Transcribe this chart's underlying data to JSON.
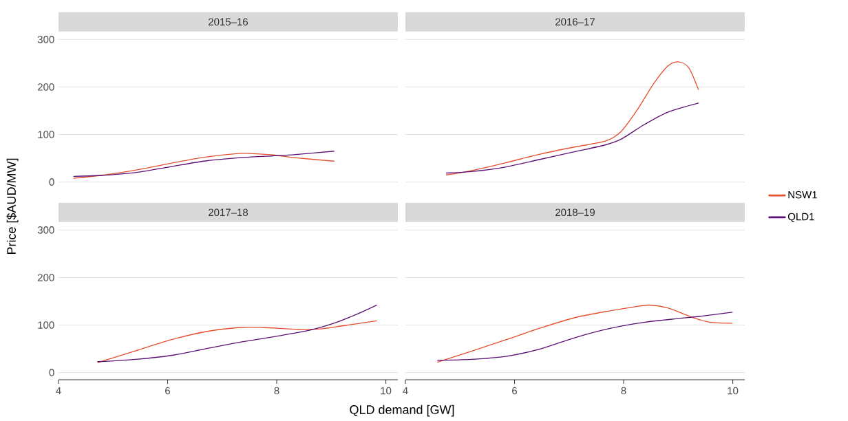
{
  "chart_data": [
    {
      "type": "line",
      "title": "2015–16",
      "ylabel": "Price [$AUD/MW]",
      "xlim": [
        4,
        10.22
      ],
      "ylim": [
        0,
        300
      ],
      "xticks": [
        4,
        6,
        8,
        10
      ],
      "yticks": [
        0,
        100,
        200,
        300
      ],
      "grid": "y",
      "tick_labels": "y",
      "series": [
        {
          "color": "#e4502e",
          "x": [
            4.28,
            4.78,
            5.41,
            6.04,
            6.67,
            7.3,
            7.51,
            7.93,
            8.35,
            9.05
          ],
          "values": [
            8,
            14,
            25,
            39,
            52,
            60,
            60,
            57,
            51,
            44
          ]
        },
        {
          "color": "#5b0f74",
          "x": [
            4.28,
            4.78,
            5.41,
            6.04,
            6.67,
            7.3,
            7.93,
            8.35,
            9.05
          ],
          "values": [
            12,
            14,
            20,
            32,
            44,
            51,
            55,
            58,
            65
          ]
        }
      ]
    },
    {
      "type": "line",
      "title": "2016–17",
      "xlim": [
        4,
        10.22
      ],
      "ylim": [
        0,
        300
      ],
      "xticks": [
        4,
        6,
        8,
        10
      ],
      "yticks": [
        0,
        100,
        200,
        300
      ],
      "grid": "y",
      "tick_labels": false,
      "legend": "right",
      "series": [
        {
          "name": "NSW1",
          "color": "#e4502e",
          "x": [
            4.75,
            5.21,
            5.85,
            6.48,
            7.11,
            7.66,
            7.95,
            8.25,
            8.55,
            8.81,
            9.0,
            9.19,
            9.37
          ],
          "values": [
            15,
            24,
            41,
            59,
            74,
            86,
            106,
            152,
            207,
            244,
            253,
            241,
            195
          ]
        },
        {
          "name": "QLD1",
          "color": "#5b0f74",
          "x": [
            4.75,
            5.21,
            5.85,
            6.48,
            7.11,
            7.66,
            7.95,
            8.38,
            8.81,
            9.37
          ],
          "values": [
            19,
            22,
            32,
            48,
            64,
            78,
            90,
            121,
            147,
            166
          ]
        }
      ]
    },
    {
      "type": "line",
      "title": "2017–18",
      "xlabel": "QLD demand [GW]",
      "xlim": [
        4,
        10.22
      ],
      "ylim": [
        0,
        300
      ],
      "xticks": [
        4,
        6,
        8,
        10
      ],
      "yticks": [
        0,
        100,
        200,
        300
      ],
      "grid": "y",
      "series": [
        {
          "color": "#e4502e",
          "x": [
            4.72,
            5.42,
            6.06,
            6.69,
            7.33,
            7.75,
            8.39,
            8.81,
            9.24,
            9.83
          ],
          "values": [
            21,
            46,
            69,
            86,
            95,
            95,
            91,
            92,
            99,
            109
          ]
        },
        {
          "color": "#5b0f74",
          "x": [
            4.72,
            5.42,
            6.06,
            6.69,
            7.33,
            7.97,
            8.6,
            9.03,
            9.45,
            9.83
          ],
          "values": [
            23,
            28,
            36,
            50,
            64,
            76,
            89,
            103,
            122,
            142
          ]
        }
      ]
    },
    {
      "type": "line",
      "title": "2018–19",
      "xlim": [
        4,
        10.22
      ],
      "ylim": [
        0,
        300
      ],
      "xticks": [
        4,
        6,
        8,
        10
      ],
      "yticks": [
        0,
        100,
        200,
        300
      ],
      "grid": "y",
      "tick_labels": "x",
      "series": [
        {
          "color": "#e4502e",
          "x": [
            4.59,
            5.21,
            5.84,
            6.48,
            7.12,
            7.75,
            8.18,
            8.47,
            8.81,
            9.24,
            9.58,
            9.99
          ],
          "values": [
            22,
            45,
            69,
            94,
            116,
            130,
            138,
            142,
            136,
            117,
            106,
            104
          ]
        },
        {
          "color": "#5b0f74",
          "x": [
            4.59,
            5.21,
            5.84,
            6.48,
            7.12,
            7.75,
            8.39,
            9.02,
            9.45,
            9.99
          ],
          "values": [
            26,
            28,
            34,
            50,
            74,
            93,
            106,
            114,
            119,
            127
          ]
        }
      ]
    }
  ]
}
